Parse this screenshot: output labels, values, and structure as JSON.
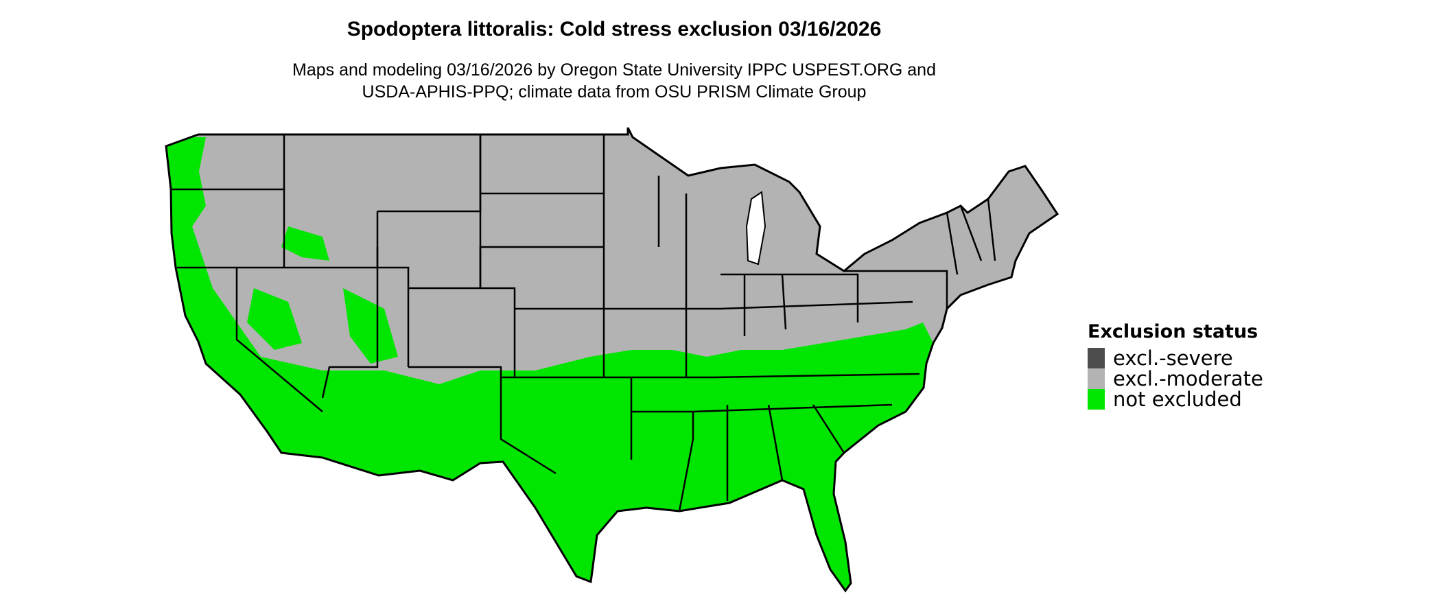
{
  "title": "Spodoptera littoralis: Cold stress exclusion 03/16/2026",
  "subtitle_line1": "Maps and modeling 03/16/2026 by Oregon State University IPPC USPEST.ORG and",
  "subtitle_line2": "USDA-APHIS-PPQ; climate data from OSU PRISM Climate Group",
  "legend": {
    "title": "Exclusion status",
    "items": [
      {
        "label": "excl.-severe",
        "color": "#4d4d4d"
      },
      {
        "label": "excl.-moderate",
        "color": "#b3b3b3"
      },
      {
        "label": "not excluded",
        "color": "#00e600"
      }
    ]
  },
  "map": {
    "region": "Contiguous United States",
    "colors": {
      "excluded_moderate": "#b3b3b3",
      "not_excluded": "#00e600",
      "border": "#000000"
    }
  }
}
